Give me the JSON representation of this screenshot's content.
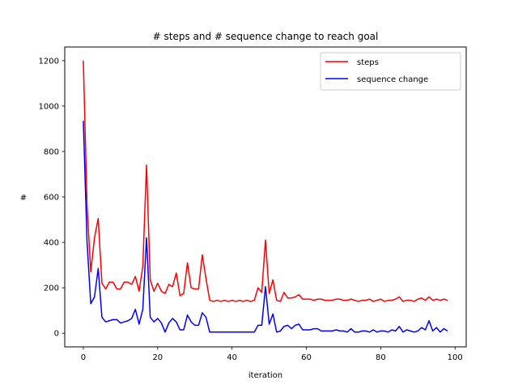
{
  "chart_data": {
    "type": "line",
    "title": "# steps and # sequence change to reach goal",
    "xlabel": "iteration",
    "ylabel": "#",
    "xlim": [
      -5,
      103
    ],
    "ylim": [
      -60,
      1260
    ],
    "xticks": [
      0,
      20,
      40,
      60,
      80,
      100
    ],
    "yticks": [
      0,
      200,
      400,
      600,
      800,
      1000,
      1200
    ],
    "grid": false,
    "legend_position": "upper right",
    "series": [
      {
        "name": "steps",
        "color": "#ff0000",
        "values": [
          1200,
          560,
          270,
          420,
          505,
          220,
          195,
          225,
          225,
          195,
          195,
          225,
          225,
          215,
          250,
          185,
          295,
          740,
          235,
          185,
          220,
          185,
          175,
          215,
          205,
          265,
          165,
          175,
          310,
          200,
          195,
          195,
          345,
          240,
          145,
          140,
          145,
          140,
          145,
          140,
          145,
          140,
          145,
          140,
          145,
          140,
          145,
          200,
          180,
          410,
          175,
          235,
          145,
          140,
          180,
          155,
          155,
          160,
          170,
          150,
          150,
          150,
          145,
          150,
          150,
          145,
          145,
          145,
          150,
          150,
          145,
          145,
          150,
          145,
          140,
          145,
          145,
          150,
          140,
          145,
          150,
          140,
          145,
          145,
          150,
          160,
          140,
          145,
          145,
          140,
          150,
          155,
          145,
          160,
          145,
          150,
          145,
          150,
          145
        ]
      },
      {
        "name": "sequence change",
        "color": "#0000ff",
        "values": [
          935,
          400,
          130,
          160,
          285,
          70,
          50,
          55,
          60,
          60,
          45,
          50,
          55,
          65,
          105,
          40,
          105,
          420,
          70,
          50,
          65,
          45,
          5,
          45,
          65,
          50,
          15,
          15,
          80,
          50,
          35,
          35,
          90,
          70,
          5,
          5,
          5,
          5,
          5,
          5,
          5,
          5,
          5,
          5,
          5,
          5,
          5,
          35,
          35,
          205,
          40,
          85,
          5,
          10,
          30,
          35,
          20,
          35,
          40,
          15,
          15,
          15,
          20,
          20,
          10,
          10,
          10,
          10,
          15,
          10,
          10,
          5,
          20,
          5,
          5,
          10,
          10,
          5,
          15,
          5,
          10,
          10,
          5,
          15,
          10,
          30,
          5,
          15,
          10,
          5,
          10,
          25,
          15,
          55,
          10,
          25,
          5,
          20,
          10
        ]
      }
    ]
  }
}
